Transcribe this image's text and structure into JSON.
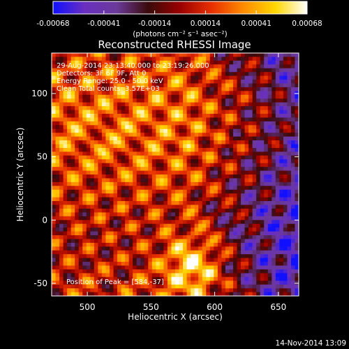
{
  "chart_data": {
    "type": "heatmap",
    "title": "Reconstructed RHESSI Image",
    "xlabel": "Heliocentric X (arcsec)",
    "ylabel": "Heliocentric Y (arcsec)",
    "xlim": [
      472,
      666
    ],
    "ylim": [
      -60,
      132
    ],
    "x_ticks": [
      500,
      550,
      600,
      650
    ],
    "y_ticks": [
      -50,
      0,
      50,
      100
    ],
    "colorbar": {
      "min": -0.00068,
      "max": 0.00068,
      "ticks": [
        "-0.00068",
        "-0.00041",
        "-0.00014",
        "0.00014",
        "0.00041",
        "0.00068"
      ],
      "unit": "(photons cm⁻² s⁻¹ asec⁻²)",
      "colors": [
        "#1010ff",
        "#6a2fbf",
        "#6b3a9a",
        "#3a0a0a",
        "#9a0000",
        "#e83000",
        "#ff8c00",
        "#ffd700",
        "#ffffff"
      ]
    },
    "annotations": {
      "time_range": "29-Aug-2014 23:13:40.000 to 23:19:26.000",
      "detectors": "Detectors: 3F 6F 9F, Att 0",
      "energy": "Energy Range: 25.0 - 50.0 keV",
      "method": "Clean    Total counts: 3.57E+03",
      "peak": "Position of Peak = [584,-37]"
    },
    "peak_position": [
      584,
      -37
    ]
  },
  "timestamp": "14-Nov-2014 13:09"
}
